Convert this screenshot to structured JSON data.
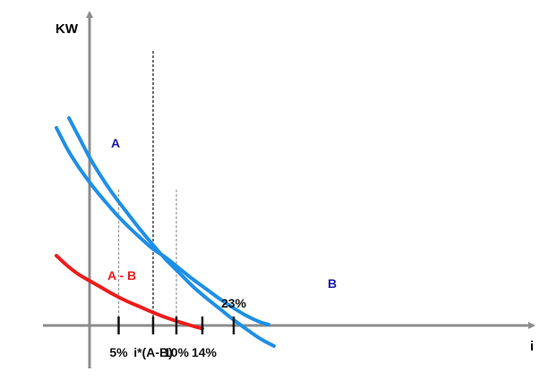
{
  "colors": {
    "curve_a": "#1e8fe6",
    "curve_b": "#1e8fe6",
    "curve_diff": "#ee1c1c",
    "label_a": "#1a1aa6",
    "label_b": "#1a1aa6",
    "label_diff": "#ee1c1c",
    "axis": "#8c8c8c",
    "tick": "#111111",
    "dash_dark": "#111111",
    "dash_light": "#999999"
  },
  "chart_data": {
    "type": "line",
    "x_axis_label": "i",
    "y_axis_label": "KW",
    "x_ticks": [
      {
        "x": 5,
        "label": "5%"
      },
      {
        "x": 10.92,
        "label": "i*(A-B)"
      },
      {
        "x": 14.92,
        "label": "10%"
      },
      {
        "x": 19.38,
        "label": "14%"
      },
      {
        "x": 24.77,
        "label": "23%"
      }
    ],
    "series": [
      {
        "name": "A",
        "points": [
          [
            -3.54,
            232
          ],
          [
            -1.85,
            211
          ],
          [
            0,
            188
          ],
          [
            2.15,
            165
          ],
          [
            4.31,
            144.5
          ],
          [
            6.46,
            126
          ],
          [
            8.62,
            108
          ],
          [
            10.92,
            90
          ],
          [
            13.08,
            74
          ],
          [
            15.38,
            59
          ],
          [
            17.69,
            44
          ],
          [
            20,
            31
          ],
          [
            22.31,
            19
          ],
          [
            24.62,
            7
          ],
          [
            26.92,
            -4
          ],
          [
            29.38,
            -15
          ],
          [
            31.69,
            -23
          ]
        ]
      },
      {
        "name": "B",
        "points": [
          [
            -5.69,
            221
          ],
          [
            -3.69,
            196
          ],
          [
            -1.54,
            174
          ],
          [
            0.62,
            155
          ],
          [
            2.77,
            138
          ],
          [
            4.92,
            122
          ],
          [
            7.08,
            108
          ],
          [
            9.23,
            95
          ],
          [
            10.92,
            85.5
          ],
          [
            13.08,
            76
          ],
          [
            15.38,
            64
          ],
          [
            17.69,
            52
          ],
          [
            20,
            41
          ],
          [
            22.31,
            30
          ],
          [
            24.62,
            20
          ],
          [
            26.92,
            11
          ],
          [
            29.23,
            4
          ],
          [
            30.77,
            1
          ]
        ]
      },
      {
        "name": "A - B",
        "points": [
          [
            -5.69,
            78
          ],
          [
            -3.85,
            67
          ],
          [
            -1.85,
            57
          ],
          [
            0,
            50
          ],
          [
            2.15,
            42
          ],
          [
            4.31,
            34
          ],
          [
            6.46,
            27
          ],
          [
            8.62,
            21
          ],
          [
            10.92,
            14.5
          ],
          [
            13.08,
            9
          ],
          [
            15.38,
            4
          ],
          [
            17.69,
            -0.5
          ],
          [
            19.38,
            -3.5
          ]
        ]
      }
    ],
    "annotations": [
      {
        "text": "A",
        "series": "A"
      },
      {
        "text": "B",
        "series": "B"
      },
      {
        "text": "A - B",
        "series": "A - B"
      }
    ],
    "reference_lines": [
      {
        "x": 10.92,
        "style": "dark-dashed"
      },
      {
        "x": 5,
        "style": "light-dashed"
      },
      {
        "x": 14.92,
        "style": "light-dashed"
      }
    ]
  }
}
